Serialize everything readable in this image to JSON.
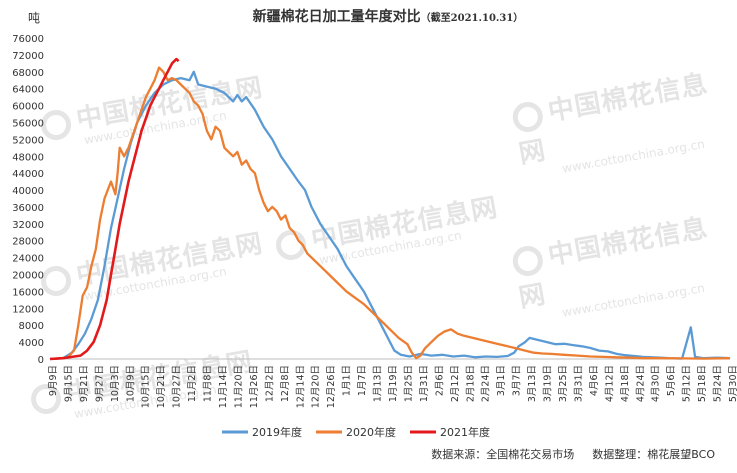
{
  "watermark": {
    "cn": "中国棉花信息网",
    "en": "www.cottonchina.org.cn"
  },
  "footer": {
    "source": "数据来源：全国棉花交易市场",
    "compiler": "数据整理：棉花展望BCO"
  },
  "colors": {
    "s2019": "#5b9bd5",
    "s2020": "#ed7d31",
    "s2021": "#e31a1c"
  },
  "chart_data": {
    "type": "line",
    "title": "新疆棉花日加工量年度对比",
    "subtitle": "（截至2021.10.31）",
    "ylabel": "吨",
    "ylim": [
      0,
      76000
    ],
    "yticks": [
      0,
      4000,
      8000,
      12000,
      16000,
      20000,
      24000,
      28000,
      32000,
      36000,
      40000,
      44000,
      48000,
      52000,
      56000,
      60000,
      64000,
      68000,
      72000,
      76000
    ],
    "xticks": [
      "9月9日",
      "9月15日",
      "9月21日",
      "9月27日",
      "10月3日",
      "10月9日",
      "10月15日",
      "10月21日",
      "10月27日",
      "11月2日",
      "11月8日",
      "11月14日",
      "11月20日",
      "11月26日",
      "12月2日",
      "12月8日",
      "12月14日",
      "12月20日",
      "12月26日",
      "1月1日",
      "1月7日",
      "1月13日",
      "1月19日",
      "1月25日",
      "1月31日",
      "2月6日",
      "2月12日",
      "2月18日",
      "2月24日",
      "3月1日",
      "3月7日",
      "3月13日",
      "3月19日",
      "3月25日",
      "3月31日",
      "4月6日",
      "4月12日",
      "4月18日",
      "4月24日",
      "4月30日",
      "5月6日",
      "5月12日",
      "5月18日",
      "5月24日",
      "5月30日"
    ],
    "legend_position": "bottom",
    "series": [
      {
        "name": "2019年度",
        "color": "#5b9bd5",
        "points": [
          [
            0,
            0
          ],
          [
            6,
            200
          ],
          [
            10,
            1500
          ],
          [
            13,
            3500
          ],
          [
            16,
            6000
          ],
          [
            19,
            9500
          ],
          [
            22,
            14000
          ],
          [
            25,
            22000
          ],
          [
            28,
            31000
          ],
          [
            31,
            38000
          ],
          [
            34,
            45000
          ],
          [
            37,
            51000
          ],
          [
            40,
            56000
          ],
          [
            44,
            60000
          ],
          [
            48,
            63000
          ],
          [
            52,
            65000
          ],
          [
            56,
            66000
          ],
          [
            60,
            66500
          ],
          [
            64,
            66000
          ],
          [
            66,
            68000
          ],
          [
            68,
            65000
          ],
          [
            72,
            64500
          ],
          [
            76,
            64000
          ],
          [
            80,
            63000
          ],
          [
            84,
            61000
          ],
          [
            86,
            62500
          ],
          [
            88,
            61000
          ],
          [
            90,
            62000
          ],
          [
            94,
            59000
          ],
          [
            98,
            55000
          ],
          [
            102,
            52000
          ],
          [
            106,
            48000
          ],
          [
            110,
            45000
          ],
          [
            114,
            42000
          ],
          [
            117,
            40000
          ],
          [
            120,
            36000
          ],
          [
            124,
            32000
          ],
          [
            128,
            29000
          ],
          [
            132,
            26000
          ],
          [
            136,
            22000
          ],
          [
            140,
            19000
          ],
          [
            144,
            16000
          ],
          [
            148,
            12000
          ],
          [
            152,
            8000
          ],
          [
            156,
            4000
          ],
          [
            158,
            2000
          ],
          [
            161,
            1000
          ],
          [
            165,
            600
          ],
          [
            170,
            1200
          ],
          [
            175,
            800
          ],
          [
            180,
            1000
          ],
          [
            185,
            600
          ],
          [
            190,
            800
          ],
          [
            195,
            400
          ],
          [
            200,
            600
          ],
          [
            205,
            500
          ],
          [
            210,
            700
          ],
          [
            213,
            1500
          ],
          [
            215,
            3000
          ],
          [
            218,
            4000
          ],
          [
            220,
            5000
          ],
          [
            224,
            4500
          ],
          [
            228,
            4000
          ],
          [
            232,
            3500
          ],
          [
            236,
            3600
          ],
          [
            240,
            3300
          ],
          [
            244,
            3000
          ],
          [
            248,
            2600
          ],
          [
            252,
            2000
          ],
          [
            256,
            1800
          ],
          [
            260,
            1200
          ],
          [
            264,
            900
          ],
          [
            268,
            700
          ],
          [
            272,
            500
          ],
          [
            276,
            400
          ],
          [
            280,
            300
          ],
          [
            284,
            200
          ],
          [
            290,
            100
          ],
          [
            294,
            7500
          ],
          [
            296,
            500
          ],
          [
            300,
            200
          ],
          [
            306,
            300
          ],
          [
            312,
            200
          ]
        ]
      },
      {
        "name": "2020年度",
        "color": "#ed7d31",
        "points": [
          [
            0,
            0
          ],
          [
            8,
            300
          ],
          [
            11,
            2000
          ],
          [
            13,
            8000
          ],
          [
            15,
            15000
          ],
          [
            17,
            17000
          ],
          [
            19,
            22000
          ],
          [
            21,
            26000
          ],
          [
            23,
            33000
          ],
          [
            25,
            38000
          ],
          [
            28,
            42000
          ],
          [
            30,
            39000
          ],
          [
            31,
            44000
          ],
          [
            32,
            50000
          ],
          [
            34,
            48000
          ],
          [
            36,
            50000
          ],
          [
            38,
            53000
          ],
          [
            40,
            56000
          ],
          [
            42,
            59000
          ],
          [
            44,
            62000
          ],
          [
            46,
            64000
          ],
          [
            48,
            66000
          ],
          [
            50,
            69000
          ],
          [
            52,
            68000
          ],
          [
            54,
            66000
          ],
          [
            56,
            66500
          ],
          [
            58,
            66000
          ],
          [
            60,
            65000
          ],
          [
            62,
            64000
          ],
          [
            64,
            63000
          ],
          [
            66,
            61000
          ],
          [
            68,
            60000
          ],
          [
            70,
            58000
          ],
          [
            72,
            54000
          ],
          [
            74,
            52000
          ],
          [
            76,
            55000
          ],
          [
            78,
            54000
          ],
          [
            80,
            50000
          ],
          [
            82,
            49000
          ],
          [
            84,
            48000
          ],
          [
            86,
            49000
          ],
          [
            88,
            46000
          ],
          [
            90,
            47000
          ],
          [
            92,
            45000
          ],
          [
            94,
            44000
          ],
          [
            96,
            40000
          ],
          [
            98,
            37000
          ],
          [
            100,
            35000
          ],
          [
            102,
            36000
          ],
          [
            104,
            35000
          ],
          [
            106,
            33000
          ],
          [
            108,
            34000
          ],
          [
            110,
            31000
          ],
          [
            112,
            30000
          ],
          [
            114,
            28000
          ],
          [
            116,
            27000
          ],
          [
            118,
            25000
          ],
          [
            120,
            24000
          ],
          [
            124,
            22000
          ],
          [
            128,
            20000
          ],
          [
            132,
            18000
          ],
          [
            136,
            16000
          ],
          [
            140,
            14500
          ],
          [
            144,
            13000
          ],
          [
            148,
            11000
          ],
          [
            152,
            9000
          ],
          [
            156,
            7000
          ],
          [
            160,
            5000
          ],
          [
            164,
            3500
          ],
          [
            166,
            1500
          ],
          [
            168,
            200
          ],
          [
            170,
            800
          ],
          [
            172,
            2500
          ],
          [
            175,
            4000
          ],
          [
            178,
            5500
          ],
          [
            181,
            6500
          ],
          [
            184,
            7000
          ],
          [
            187,
            6000
          ],
          [
            190,
            5500
          ],
          [
            194,
            5000
          ],
          [
            198,
            4500
          ],
          [
            202,
            4000
          ],
          [
            206,
            3500
          ],
          [
            210,
            3000
          ],
          [
            214,
            2500
          ],
          [
            218,
            2000
          ],
          [
            222,
            1500
          ],
          [
            226,
            1300
          ],
          [
            230,
            1200
          ],
          [
            236,
            1000
          ],
          [
            242,
            800
          ],
          [
            248,
            600
          ],
          [
            254,
            500
          ],
          [
            260,
            400
          ],
          [
            266,
            300
          ],
          [
            272,
            200
          ],
          [
            280,
            200
          ],
          [
            290,
            150
          ],
          [
            300,
            100
          ],
          [
            312,
            200
          ]
        ]
      },
      {
        "name": "2021年度",
        "color": "#e31a1c",
        "points": [
          [
            0,
            0
          ],
          [
            6,
            200
          ],
          [
            10,
            500
          ],
          [
            14,
            800
          ],
          [
            17,
            2000
          ],
          [
            20,
            4000
          ],
          [
            23,
            8000
          ],
          [
            26,
            14000
          ],
          [
            28,
            20000
          ],
          [
            30,
            26000
          ],
          [
            32,
            32000
          ],
          [
            34,
            37000
          ],
          [
            36,
            42000
          ],
          [
            38,
            46000
          ],
          [
            40,
            50000
          ],
          [
            42,
            54000
          ],
          [
            44,
            57000
          ],
          [
            46,
            60000
          ],
          [
            48,
            62000
          ],
          [
            50,
            64000
          ],
          [
            52,
            66000
          ],
          [
            54,
            68000
          ],
          [
            56,
            70000
          ],
          [
            58,
            71000
          ],
          [
            59,
            70500
          ]
        ]
      }
    ]
  }
}
